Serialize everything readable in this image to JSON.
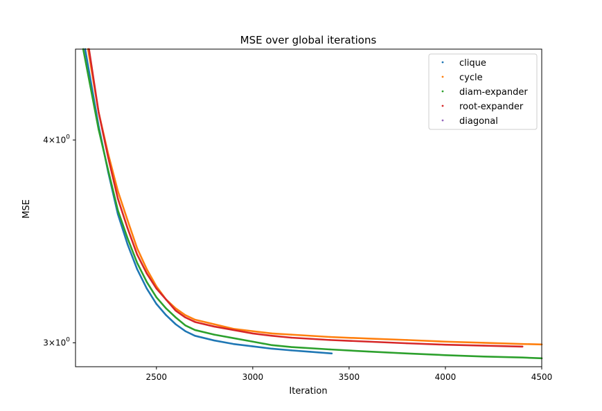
{
  "chart_data": {
    "type": "scatter",
    "title": "MSE over global iterations",
    "xlabel": "Iteration",
    "ylabel": "MSE",
    "xlim": [
      2080,
      4500
    ],
    "ylim": [
      2.9,
      4.55
    ],
    "yscale": "log",
    "grid": false,
    "legend_position": "top-right",
    "x_ticks": [
      {
        "value": 2500,
        "label": "2500"
      },
      {
        "value": 3000,
        "label": "3000"
      },
      {
        "value": 3500,
        "label": "3500"
      },
      {
        "value": 4000,
        "label": "4000"
      },
      {
        "value": 4500,
        "label": "4500"
      }
    ],
    "y_ticks": [
      {
        "value": 3,
        "base": "3",
        "mult": "×",
        "ten": "10",
        "exp": "0"
      },
      {
        "value": 4,
        "base": "4",
        "mult": "×",
        "ten": "10",
        "exp": "0"
      }
    ],
    "series": [
      {
        "name": "clique",
        "color": "#1f77b4",
        "points": [
          [
            2130,
            4.55
          ],
          [
            2200,
            4.08
          ],
          [
            2250,
            3.82
          ],
          [
            2300,
            3.6
          ],
          [
            2350,
            3.45
          ],
          [
            2400,
            3.33
          ],
          [
            2450,
            3.24
          ],
          [
            2500,
            3.17
          ],
          [
            2550,
            3.12
          ],
          [
            2600,
            3.08
          ],
          [
            2650,
            3.05
          ],
          [
            2700,
            3.03
          ],
          [
            2800,
            3.01
          ],
          [
            2900,
            2.995
          ],
          [
            3000,
            2.985
          ],
          [
            3100,
            2.975
          ],
          [
            3200,
            2.968
          ],
          [
            3300,
            2.962
          ],
          [
            3410,
            2.955
          ]
        ]
      },
      {
        "name": "cycle",
        "color": "#ff7f0e",
        "points": [
          [
            2145,
            4.55
          ],
          [
            2200,
            4.16
          ],
          [
            2250,
            3.92
          ],
          [
            2300,
            3.72
          ],
          [
            2350,
            3.57
          ],
          [
            2400,
            3.43
          ],
          [
            2450,
            3.33
          ],
          [
            2500,
            3.25
          ],
          [
            2550,
            3.19
          ],
          [
            2600,
            3.15
          ],
          [
            2650,
            3.12
          ],
          [
            2700,
            3.1
          ],
          [
            2800,
            3.08
          ],
          [
            2900,
            3.06
          ],
          [
            3000,
            3.05
          ],
          [
            3100,
            3.04
          ],
          [
            3200,
            3.035
          ],
          [
            3400,
            3.025
          ],
          [
            3600,
            3.018
          ],
          [
            3800,
            3.012
          ],
          [
            4000,
            3.005
          ],
          [
            4200,
            3.0
          ],
          [
            4400,
            2.995
          ],
          [
            4500,
            2.993
          ]
        ]
      },
      {
        "name": "diam-expander",
        "color": "#2ca02c",
        "points": [
          [
            2120,
            4.55
          ],
          [
            2200,
            4.06
          ],
          [
            2250,
            3.83
          ],
          [
            2300,
            3.62
          ],
          [
            2350,
            3.48
          ],
          [
            2400,
            3.36
          ],
          [
            2450,
            3.27
          ],
          [
            2500,
            3.2
          ],
          [
            2550,
            3.15
          ],
          [
            2600,
            3.11
          ],
          [
            2650,
            3.075
          ],
          [
            2700,
            3.055
          ],
          [
            2800,
            3.035
          ],
          [
            2900,
            3.02
          ],
          [
            3000,
            3.005
          ],
          [
            3100,
            2.99
          ],
          [
            3200,
            2.982
          ],
          [
            3400,
            2.972
          ],
          [
            3600,
            2.963
          ],
          [
            3800,
            2.955
          ],
          [
            4000,
            2.948
          ],
          [
            4200,
            2.942
          ],
          [
            4400,
            2.938
          ],
          [
            4500,
            2.935
          ]
        ]
      },
      {
        "name": "root-expander",
        "color": "#d62728",
        "points": [
          [
            2150,
            4.55
          ],
          [
            2200,
            4.16
          ],
          [
            2250,
            3.9
          ],
          [
            2300,
            3.68
          ],
          [
            2350,
            3.53
          ],
          [
            2400,
            3.4
          ],
          [
            2450,
            3.31
          ],
          [
            2500,
            3.24
          ],
          [
            2550,
            3.19
          ],
          [
            2600,
            3.14
          ],
          [
            2650,
            3.11
          ],
          [
            2700,
            3.09
          ],
          [
            2800,
            3.07
          ],
          [
            2900,
            3.055
          ],
          [
            3000,
            3.04
          ],
          [
            3100,
            3.03
          ],
          [
            3200,
            3.022
          ],
          [
            3400,
            3.012
          ],
          [
            3600,
            3.005
          ],
          [
            3800,
            2.998
          ],
          [
            4000,
            2.992
          ],
          [
            4200,
            2.988
          ],
          [
            4400,
            2.984
          ]
        ]
      },
      {
        "name": "diagonal",
        "color": "#9467bd",
        "points": []
      }
    ]
  }
}
